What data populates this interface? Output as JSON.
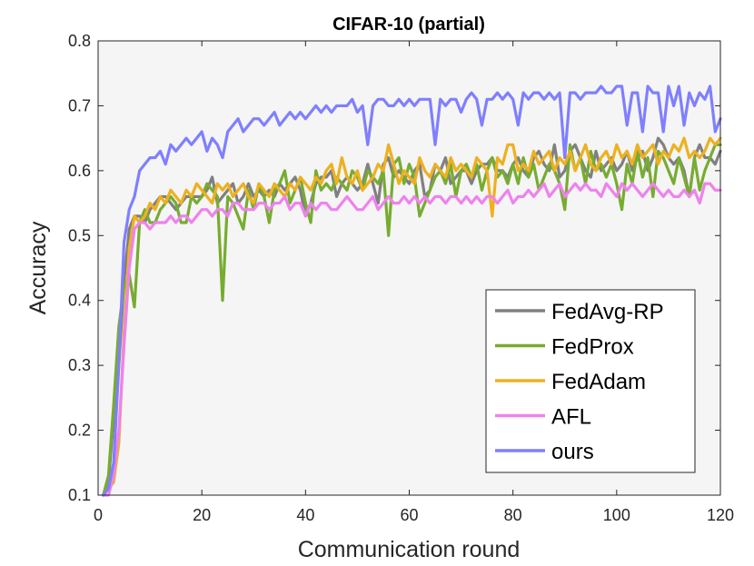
{
  "chart_data": {
    "type": "line",
    "title": "CIFAR-10 (partial)",
    "xlabel": "Communication round",
    "ylabel": "Accuracy",
    "xlim": [
      0,
      120
    ],
    "ylim": [
      0.1,
      0.8
    ],
    "xticks": [
      0,
      20,
      40,
      60,
      80,
      100,
      120
    ],
    "yticks": [
      0.1,
      0.2,
      0.3,
      0.4,
      0.5,
      0.6,
      0.7,
      0.8
    ],
    "xtick_labels": [
      "0",
      "20",
      "40",
      "60",
      "80",
      "100",
      "120"
    ],
    "ytick_labels": [
      "0.1",
      "0.2",
      "0.3",
      "0.4",
      "0.5",
      "0.6",
      "0.7",
      "0.8"
    ],
    "legend_position": "bottom-right",
    "grid": false,
    "series": [
      {
        "name": "FedAvg-RP",
        "color": "#808080",
        "values": [
          0.1,
          0.12,
          0.22,
          0.3,
          0.43,
          0.51,
          0.53,
          0.53,
          0.52,
          0.54,
          0.55,
          0.56,
          0.56,
          0.55,
          0.54,
          0.55,
          0.56,
          0.56,
          0.56,
          0.56,
          0.57,
          0.59,
          0.55,
          0.56,
          0.57,
          0.58,
          0.55,
          0.56,
          0.58,
          0.56,
          0.57,
          0.56,
          0.57,
          0.56,
          0.58,
          0.57,
          0.58,
          0.59,
          0.57,
          0.53,
          0.55,
          0.58,
          0.59,
          0.59,
          0.6,
          0.56,
          0.58,
          0.59,
          0.58,
          0.57,
          0.58,
          0.61,
          0.58,
          0.55,
          0.61,
          0.62,
          0.59,
          0.6,
          0.59,
          0.58,
          0.6,
          0.61,
          0.56,
          0.57,
          0.61,
          0.6,
          0.62,
          0.58,
          0.59,
          0.6,
          0.6,
          0.58,
          0.6,
          0.61,
          0.61,
          0.62,
          0.6,
          0.6,
          0.59,
          0.61,
          0.62,
          0.6,
          0.59,
          0.62,
          0.63,
          0.61,
          0.6,
          0.64,
          0.59,
          0.6,
          0.63,
          0.64,
          0.62,
          0.6,
          0.59,
          0.63,
          0.6,
          0.61,
          0.62,
          0.6,
          0.61,
          0.63,
          0.6,
          0.62,
          0.63,
          0.6,
          0.62,
          0.65,
          0.64,
          0.62,
          0.61,
          0.62,
          0.6,
          0.56,
          0.62,
          0.64,
          0.62,
          0.62,
          0.61,
          0.63
        ]
      },
      {
        "name": "FedProx",
        "color": "#77AC30",
        "values": [
          0.1,
          0.13,
          0.24,
          0.36,
          0.42,
          0.44,
          0.39,
          0.52,
          0.54,
          0.52,
          0.52,
          0.54,
          0.55,
          0.56,
          0.55,
          0.52,
          0.52,
          0.56,
          0.55,
          0.56,
          0.58,
          0.57,
          0.56,
          0.4,
          0.56,
          0.55,
          0.53,
          0.51,
          0.57,
          0.54,
          0.58,
          0.56,
          0.52,
          0.57,
          0.58,
          0.6,
          0.55,
          0.57,
          0.59,
          0.55,
          0.52,
          0.6,
          0.57,
          0.58,
          0.57,
          0.59,
          0.58,
          0.57,
          0.6,
          0.59,
          0.57,
          0.6,
          0.59,
          0.58,
          0.6,
          0.5,
          0.61,
          0.62,
          0.58,
          0.61,
          0.59,
          0.53,
          0.55,
          0.57,
          0.59,
          0.6,
          0.58,
          0.61,
          0.56,
          0.6,
          0.61,
          0.59,
          0.61,
          0.57,
          0.6,
          0.62,
          0.59,
          0.6,
          0.58,
          0.61,
          0.58,
          0.62,
          0.59,
          0.61,
          0.57,
          0.59,
          0.61,
          0.6,
          0.58,
          0.54,
          0.64,
          0.6,
          0.62,
          0.58,
          0.63,
          0.6,
          0.61,
          0.59,
          0.61,
          0.58,
          0.54,
          0.61,
          0.58,
          0.63,
          0.59,
          0.62,
          0.56,
          0.63,
          0.62,
          0.6,
          0.58,
          0.62,
          0.59,
          0.56,
          0.62,
          0.57,
          0.6,
          0.62,
          0.64,
          0.64
        ]
      },
      {
        "name": "FedAdam",
        "color": "#EDB120",
        "values": [
          0.1,
          0.11,
          0.12,
          0.18,
          0.35,
          0.48,
          0.53,
          0.52,
          0.53,
          0.55,
          0.54,
          0.56,
          0.55,
          0.57,
          0.56,
          0.55,
          0.57,
          0.56,
          0.58,
          0.57,
          0.56,
          0.55,
          0.58,
          0.57,
          0.58,
          0.56,
          0.57,
          0.58,
          0.56,
          0.55,
          0.58,
          0.57,
          0.56,
          0.58,
          0.57,
          0.56,
          0.58,
          0.57,
          0.59,
          0.58,
          0.57,
          0.59,
          0.58,
          0.6,
          0.61,
          0.58,
          0.62,
          0.59,
          0.58,
          0.6,
          0.57,
          0.58,
          0.59,
          0.61,
          0.6,
          0.64,
          0.61,
          0.58,
          0.6,
          0.59,
          0.58,
          0.62,
          0.6,
          0.59,
          0.61,
          0.6,
          0.59,
          0.62,
          0.6,
          0.61,
          0.6,
          0.59,
          0.62,
          0.61,
          0.6,
          0.53,
          0.62,
          0.61,
          0.64,
          0.64,
          0.6,
          0.61,
          0.6,
          0.63,
          0.61,
          0.62,
          0.63,
          0.6,
          0.62,
          0.61,
          0.63,
          0.6,
          0.62,
          0.64,
          0.61,
          0.6,
          0.62,
          0.63,
          0.61,
          0.64,
          0.62,
          0.63,
          0.61,
          0.64,
          0.62,
          0.63,
          0.64,
          0.61,
          0.63,
          0.62,
          0.64,
          0.63,
          0.65,
          0.62,
          0.63,
          0.62,
          0.63,
          0.65,
          0.64,
          0.65
        ]
      },
      {
        "name": "AFL",
        "color": "#EE82EE",
        "values": [
          0.1,
          0.1,
          0.13,
          0.2,
          0.33,
          0.45,
          0.51,
          0.52,
          0.52,
          0.51,
          0.52,
          0.52,
          0.52,
          0.53,
          0.52,
          0.53,
          0.53,
          0.52,
          0.53,
          0.54,
          0.54,
          0.53,
          0.54,
          0.54,
          0.53,
          0.55,
          0.55,
          0.54,
          0.54,
          0.54,
          0.55,
          0.55,
          0.54,
          0.55,
          0.55,
          0.56,
          0.54,
          0.55,
          0.55,
          0.53,
          0.55,
          0.54,
          0.55,
          0.55,
          0.54,
          0.54,
          0.55,
          0.56,
          0.55,
          0.54,
          0.54,
          0.55,
          0.56,
          0.54,
          0.55,
          0.56,
          0.55,
          0.55,
          0.56,
          0.55,
          0.56,
          0.55,
          0.56,
          0.55,
          0.56,
          0.56,
          0.55,
          0.56,
          0.56,
          0.55,
          0.56,
          0.55,
          0.56,
          0.55,
          0.56,
          0.56,
          0.55,
          0.56,
          0.57,
          0.55,
          0.56,
          0.56,
          0.57,
          0.56,
          0.57,
          0.58,
          0.56,
          0.57,
          0.58,
          0.56,
          0.57,
          0.58,
          0.57,
          0.58,
          0.57,
          0.57,
          0.56,
          0.58,
          0.57,
          0.56,
          0.58,
          0.57,
          0.58,
          0.57,
          0.56,
          0.57,
          0.58,
          0.57,
          0.56,
          0.57,
          0.56,
          0.56,
          0.57,
          0.56,
          0.57,
          0.55,
          0.58,
          0.58,
          0.57,
          0.57
        ]
      },
      {
        "name": "ours",
        "color": "#7F7FFF",
        "values": [
          0.1,
          0.11,
          0.15,
          0.3,
          0.49,
          0.54,
          0.56,
          0.6,
          0.61,
          0.62,
          0.62,
          0.63,
          0.61,
          0.64,
          0.63,
          0.64,
          0.65,
          0.64,
          0.65,
          0.66,
          0.63,
          0.65,
          0.64,
          0.62,
          0.66,
          0.67,
          0.68,
          0.66,
          0.67,
          0.68,
          0.68,
          0.67,
          0.68,
          0.69,
          0.67,
          0.68,
          0.69,
          0.68,
          0.69,
          0.68,
          0.69,
          0.7,
          0.69,
          0.7,
          0.69,
          0.7,
          0.7,
          0.7,
          0.71,
          0.69,
          0.7,
          0.64,
          0.7,
          0.71,
          0.71,
          0.7,
          0.7,
          0.71,
          0.7,
          0.71,
          0.7,
          0.71,
          0.71,
          0.71,
          0.64,
          0.71,
          0.7,
          0.71,
          0.71,
          0.69,
          0.71,
          0.72,
          0.71,
          0.67,
          0.71,
          0.71,
          0.72,
          0.71,
          0.72,
          0.71,
          0.67,
          0.72,
          0.71,
          0.72,
          0.72,
          0.71,
          0.72,
          0.71,
          0.72,
          0.62,
          0.72,
          0.72,
          0.71,
          0.72,
          0.72,
          0.72,
          0.73,
          0.72,
          0.72,
          0.73,
          0.73,
          0.67,
          0.72,
          0.72,
          0.66,
          0.73,
          0.72,
          0.72,
          0.66,
          0.73,
          0.7,
          0.73,
          0.67,
          0.72,
          0.7,
          0.72,
          0.71,
          0.73,
          0.66,
          0.68
        ]
      }
    ]
  }
}
